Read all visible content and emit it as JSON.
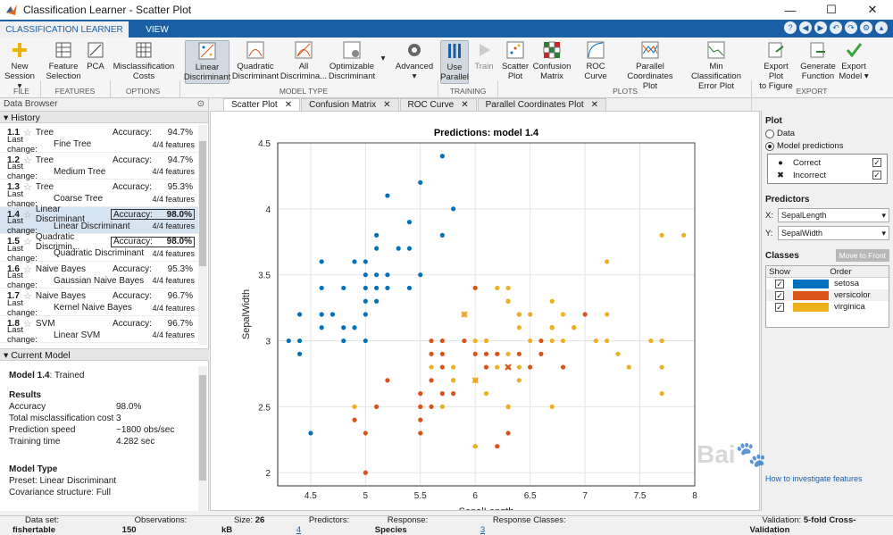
{
  "window": {
    "title": "Classification Learner - Scatter Plot"
  },
  "ribbon_tabs": [
    "CLASSIFICATION LEARNER",
    "VIEW"
  ],
  "ribbon": {
    "buttons": [
      {
        "label1": "New",
        "label2": "Session ▾"
      },
      {
        "label1": "Feature",
        "label2": "Selection"
      },
      {
        "label1": "PCA",
        "label2": ""
      },
      {
        "label1": "Misclassification",
        "label2": "Costs"
      },
      {
        "label1": "Linear",
        "label2": "Discriminant"
      },
      {
        "label1": "Quadratic",
        "label2": "Discriminant"
      },
      {
        "label1": "All",
        "label2": "Discrimina..."
      },
      {
        "label1": "Optimizable",
        "label2": "Discriminant"
      },
      {
        "label1": "Advanced",
        "label2": "▾"
      },
      {
        "label1": "Use",
        "label2": "Parallel"
      },
      {
        "label1": "Train",
        "label2": ""
      },
      {
        "label1": "Scatter",
        "label2": "Plot"
      },
      {
        "label1": "Confusion",
        "label2": "Matrix"
      },
      {
        "label1": "ROC Curve",
        "label2": ""
      },
      {
        "label1": "Parallel",
        "label2": "Coordinates Plot"
      },
      {
        "label1": "Min Classification",
        "label2": "Error Plot"
      },
      {
        "label1": "Export Plot",
        "label2": "to Figure"
      },
      {
        "label1": "Generate",
        "label2": "Function"
      },
      {
        "label1": "Export",
        "label2": "Model ▾"
      }
    ],
    "sections": [
      "FILE",
      "FEATURES",
      "OPTIONS",
      "MODEL TYPE",
      "TRAINING",
      "PLOTS",
      "EXPORT"
    ]
  },
  "doc_tabs": [
    "Scatter Plot",
    "Confusion Matrix",
    "ROC Curve",
    "Parallel Coordinates Plot"
  ],
  "data_browser": {
    "title": "Data Browser",
    "history_title": "History",
    "current_model_title": "Current Model"
  },
  "history": [
    {
      "num": "1.1",
      "name": "Tree",
      "acc_label": "Accuracy:",
      "acc": "94.7%",
      "lc_label": "Last change:",
      "lc": "Fine Tree",
      "feat": "4/4 features"
    },
    {
      "num": "1.2",
      "name": "Tree",
      "acc_label": "Accuracy:",
      "acc": "94.7%",
      "lc_label": "Last change:",
      "lc": "Medium Tree",
      "feat": "4/4 features"
    },
    {
      "num": "1.3",
      "name": "Tree",
      "acc_label": "Accuracy:",
      "acc": "95.3%",
      "lc_label": "Last change:",
      "lc": "Coarse Tree",
      "feat": "4/4 features"
    },
    {
      "num": "1.4",
      "name": "Linear Discriminant",
      "acc_label": "Accuracy:",
      "acc": "98.0%",
      "lc_label": "Last change:",
      "lc": "Linear Discriminant",
      "feat": "4/4 features"
    },
    {
      "num": "1.5",
      "name": "Quadratic Discrimin...",
      "acc_label": "Accuracy:",
      "acc": "98.0%",
      "lc_label": "Last change:",
      "lc": "Quadratic Discriminant",
      "feat": "4/4 features"
    },
    {
      "num": "1.6",
      "name": "Naive Bayes",
      "acc_label": "Accuracy:",
      "acc": "95.3%",
      "lc_label": "Last change:",
      "lc": "Gaussian Naive Bayes",
      "feat": "4/4 features"
    },
    {
      "num": "1.7",
      "name": "Naive Bayes",
      "acc_label": "Accuracy:",
      "acc": "96.7%",
      "lc_label": "Last change:",
      "lc": "Kernel Naive Bayes",
      "feat": "4/4 features"
    },
    {
      "num": "1.8",
      "name": "SVM",
      "acc_label": "Accuracy:",
      "acc": "96.7%",
      "lc_label": "Last change:",
      "lc": "Linear SVM",
      "feat": "4/4 features"
    }
  ],
  "current_model": {
    "model_label": "Model 1.4",
    "model_status": ": Trained",
    "results_title": "Results",
    "results": [
      [
        "Accuracy",
        "98.0%"
      ],
      [
        "Total misclassification cost",
        "3"
      ],
      [
        "Prediction speed",
        "~1800 obs/sec"
      ],
      [
        "Training time",
        "4.282 sec"
      ]
    ],
    "type_title": "Model Type",
    "preset": "Preset: Linear Discriminant",
    "covariance": "Covariance structure: Full"
  },
  "plot_panel": {
    "plot_title": "Plot",
    "data": "Data",
    "model_predictions": "Model predictions",
    "correct": "Correct",
    "incorrect": "Incorrect",
    "predictors_title": "Predictors",
    "x_label": "X:",
    "x_value": "SepalLength",
    "y_label": "Y:",
    "y_value": "SepalWidth",
    "classes_title": "Classes",
    "move_to_front": "Move to Front",
    "col_show": "Show",
    "col_order": "Order",
    "classes": [
      {
        "name": "setosa",
        "color": "#0072BD"
      },
      {
        "name": "versicolor",
        "color": "#D95319"
      },
      {
        "name": "virginica",
        "color": "#EDB120"
      }
    ],
    "hint": "How to investigate features"
  },
  "statusbar": {
    "dataset_label": "Data set:",
    "dataset": "fishertable",
    "obs_label": "Observations:",
    "obs": "150",
    "size_label": "Size:",
    "size": "26 kB",
    "pred_label": "Predictors:",
    "pred": "4",
    "resp_label": "Response:",
    "resp": "Species",
    "rc_label": "Response Classes:",
    "rc": "3",
    "val_label": "Validation:",
    "val": "5-fold Cross-Validation"
  },
  "chart_data": {
    "type": "scatter",
    "title": "Predictions: model 1.4",
    "xlabel": "SepalLength",
    "ylabel": "SepalWidth",
    "xlim": [
      4.2,
      8.0
    ],
    "ylim": [
      1.9,
      4.5
    ],
    "xticks": [
      "4.5",
      "5",
      "5.5",
      "6",
      "6.5",
      "7",
      "7.5",
      "8"
    ],
    "yticks": [
      "2",
      "2.5",
      "3",
      "3.5",
      "4",
      "4.5"
    ],
    "grid": true,
    "series": [
      {
        "name": "setosa",
        "color": "#0072BD",
        "points": [
          [
            4.3,
            3.0
          ],
          [
            4.4,
            2.9
          ],
          [
            4.4,
            3.0
          ],
          [
            4.4,
            3.2
          ],
          [
            4.5,
            2.3
          ],
          [
            4.6,
            3.1
          ],
          [
            4.6,
            3.4
          ],
          [
            4.6,
            3.6
          ],
          [
            4.6,
            3.2
          ],
          [
            4.7,
            3.2
          ],
          [
            4.8,
            3.0
          ],
          [
            4.8,
            3.4
          ],
          [
            4.8,
            3.1
          ],
          [
            4.9,
            3.1
          ],
          [
            4.9,
            3.6
          ],
          [
            5.0,
            3.0
          ],
          [
            5.0,
            3.2
          ],
          [
            5.0,
            3.3
          ],
          [
            5.0,
            3.4
          ],
          [
            5.0,
            3.5
          ],
          [
            5.0,
            3.6
          ],
          [
            5.1,
            3.3
          ],
          [
            5.1,
            3.4
          ],
          [
            5.1,
            3.5
          ],
          [
            5.1,
            3.7
          ],
          [
            5.1,
            3.8
          ],
          [
            5.2,
            3.4
          ],
          [
            5.2,
            3.5
          ],
          [
            5.2,
            4.1
          ],
          [
            5.3,
            3.7
          ],
          [
            5.4,
            3.4
          ],
          [
            5.4,
            3.7
          ],
          [
            5.4,
            3.9
          ],
          [
            5.5,
            3.5
          ],
          [
            5.5,
            4.2
          ],
          [
            5.7,
            3.8
          ],
          [
            5.7,
            4.4
          ],
          [
            5.8,
            4.0
          ]
        ]
      },
      {
        "name": "versicolor",
        "color": "#D95319",
        "points": [
          [
            4.9,
            2.4
          ],
          [
            5.0,
            2.0
          ],
          [
            5.0,
            2.3
          ],
          [
            5.1,
            2.5
          ],
          [
            5.2,
            2.7
          ],
          [
            5.5,
            2.3
          ],
          [
            5.5,
            2.4
          ],
          [
            5.5,
            2.5
          ],
          [
            5.5,
            2.6
          ],
          [
            5.6,
            2.5
          ],
          [
            5.6,
            2.7
          ],
          [
            5.6,
            2.9
          ],
          [
            5.6,
            3.0
          ],
          [
            5.7,
            2.6
          ],
          [
            5.7,
            2.8
          ],
          [
            5.7,
            2.9
          ],
          [
            5.7,
            3.0
          ],
          [
            5.8,
            2.6
          ],
          [
            5.8,
            2.7
          ],
          [
            5.9,
            3.0
          ],
          [
            5.9,
            3.2
          ],
          [
            6.0,
            2.2
          ],
          [
            6.0,
            2.7
          ],
          [
            6.0,
            2.9
          ],
          [
            6.0,
            3.4
          ],
          [
            6.1,
            2.8
          ],
          [
            6.1,
            2.9
          ],
          [
            6.1,
            3.0
          ],
          [
            6.2,
            2.2
          ],
          [
            6.2,
            2.9
          ],
          [
            6.3,
            2.3
          ],
          [
            6.3,
            2.5
          ],
          [
            6.3,
            3.3
          ],
          [
            6.4,
            2.9
          ],
          [
            6.4,
            3.2
          ],
          [
            6.5,
            2.8
          ],
          [
            6.6,
            2.9
          ],
          [
            6.6,
            3.0
          ],
          [
            6.7,
            3.1
          ],
          [
            6.8,
            2.8
          ],
          [
            6.9,
            3.1
          ],
          [
            7.0,
            3.2
          ]
        ]
      },
      {
        "name": "virginica",
        "color": "#EDB120",
        "points": [
          [
            4.9,
            2.5
          ],
          [
            5.6,
            2.8
          ],
          [
            5.7,
            2.5
          ],
          [
            5.8,
            2.7
          ],
          [
            5.8,
            2.8
          ],
          [
            6.0,
            2.2
          ],
          [
            6.0,
            3.0
          ],
          [
            6.1,
            2.6
          ],
          [
            6.1,
            3.0
          ],
          [
            6.2,
            2.8
          ],
          [
            6.2,
            3.4
          ],
          [
            6.3,
            2.5
          ],
          [
            6.3,
            2.8
          ],
          [
            6.3,
            2.9
          ],
          [
            6.3,
            3.3
          ],
          [
            6.3,
            3.4
          ],
          [
            6.4,
            2.7
          ],
          [
            6.4,
            2.8
          ],
          [
            6.4,
            3.1
          ],
          [
            6.4,
            3.2
          ],
          [
            6.5,
            3.0
          ],
          [
            6.5,
            3.2
          ],
          [
            6.7,
            2.5
          ],
          [
            6.7,
            3.0
          ],
          [
            6.7,
            3.1
          ],
          [
            6.7,
            3.3
          ],
          [
            6.8,
            3.0
          ],
          [
            6.8,
            3.2
          ],
          [
            6.9,
            3.1
          ],
          [
            7.1,
            3.0
          ],
          [
            7.2,
            3.0
          ],
          [
            7.2,
            3.2
          ],
          [
            7.2,
            3.6
          ],
          [
            7.3,
            2.9
          ],
          [
            7.4,
            2.8
          ],
          [
            7.6,
            3.0
          ],
          [
            7.7,
            2.6
          ],
          [
            7.7,
            2.8
          ],
          [
            7.7,
            3.0
          ],
          [
            7.7,
            3.8
          ],
          [
            7.9,
            3.8
          ]
        ]
      }
    ],
    "incorrect": [
      {
        "x": 5.9,
        "y": 3.2,
        "pred": "virginica"
      },
      {
        "x": 6.0,
        "y": 2.7,
        "pred": "virginica"
      },
      {
        "x": 6.3,
        "y": 2.8,
        "pred": "versicolor"
      }
    ]
  }
}
